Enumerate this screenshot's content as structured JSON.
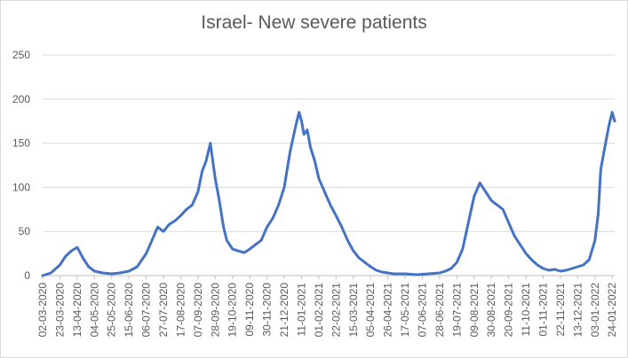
{
  "chart_data": {
    "type": "line",
    "title": "Israel- New severe patients",
    "xlabel": "",
    "ylabel": "",
    "ylim": [
      0,
      250
    ],
    "yticks": [
      0,
      50,
      100,
      150,
      200,
      250
    ],
    "grid": true,
    "color": "#4472C4",
    "x_start": "2020-03-02",
    "x_end": "2022-01-27",
    "x_tick_labels": [
      "02-03-2020",
      "23-03-2020",
      "13-04-2020",
      "04-05-2020",
      "25-05-2020",
      "15-06-2020",
      "06-07-2020",
      "27-07-2020",
      "17-08-2020",
      "07-09-2020",
      "28-09-2020",
      "19-10-2020",
      "09-11-2020",
      "30-11-2020",
      "21-12-2020",
      "11-01-2021",
      "01-02-2021",
      "22-02-2021",
      "15-03-2021",
      "05-04-2021",
      "26-04-2021",
      "17-05-2021",
      "07-06-2021",
      "28-06-2021",
      "19-07-2021",
      "09-08-2021",
      "30-08-2021",
      "20-09-2021",
      "11-10-2021",
      "01-11-2021",
      "22-11-2021",
      "13-12-2021",
      "03-01-2022",
      "24-01-2022"
    ],
    "series": [
      {
        "name": "New severe patients",
        "x": [
          "2020-03-02",
          "2020-03-12",
          "2020-03-23",
          "2020-03-30",
          "2020-04-06",
          "2020-04-13",
          "2020-04-20",
          "2020-04-27",
          "2020-05-04",
          "2020-05-14",
          "2020-05-25",
          "2020-06-04",
          "2020-06-15",
          "2020-06-25",
          "2020-07-06",
          "2020-07-13",
          "2020-07-20",
          "2020-07-27",
          "2020-08-03",
          "2020-08-10",
          "2020-08-17",
          "2020-08-24",
          "2020-08-31",
          "2020-09-07",
          "2020-09-12",
          "2020-09-17",
          "2020-09-22",
          "2020-09-28",
          "2020-10-03",
          "2020-10-08",
          "2020-10-12",
          "2020-10-19",
          "2020-10-26",
          "2020-11-02",
          "2020-11-09",
          "2020-11-16",
          "2020-11-23",
          "2020-11-30",
          "2020-12-07",
          "2020-12-14",
          "2020-12-21",
          "2020-12-28",
          "2021-01-04",
          "2021-01-08",
          "2021-01-11",
          "2021-01-14",
          "2021-01-18",
          "2021-01-22",
          "2021-01-27",
          "2021-02-01",
          "2021-02-08",
          "2021-02-15",
          "2021-02-22",
          "2021-03-01",
          "2021-03-08",
          "2021-03-15",
          "2021-03-22",
          "2021-03-29",
          "2021-04-05",
          "2021-04-12",
          "2021-04-19",
          "2021-04-26",
          "2021-05-03",
          "2021-05-17",
          "2021-05-31",
          "2021-06-14",
          "2021-06-28",
          "2021-07-05",
          "2021-07-12",
          "2021-07-19",
          "2021-07-26",
          "2021-08-02",
          "2021-08-09",
          "2021-08-16",
          "2021-08-23",
          "2021-08-30",
          "2021-09-06",
          "2021-09-13",
          "2021-09-20",
          "2021-09-27",
          "2021-10-04",
          "2021-10-11",
          "2021-10-18",
          "2021-10-25",
          "2021-11-01",
          "2021-11-08",
          "2021-11-15",
          "2021-11-22",
          "2021-11-29",
          "2021-12-06",
          "2021-12-13",
          "2021-12-20",
          "2021-12-27",
          "2022-01-03",
          "2022-01-07",
          "2022-01-10",
          "2022-01-13",
          "2022-01-17",
          "2022-01-20",
          "2022-01-24",
          "2022-01-27"
        ],
        "values": [
          0,
          3,
          12,
          22,
          28,
          32,
          20,
          10,
          5,
          3,
          2,
          3,
          5,
          10,
          25,
          40,
          55,
          50,
          58,
          62,
          68,
          75,
          80,
          95,
          118,
          130,
          150,
          110,
          85,
          55,
          40,
          30,
          28,
          26,
          30,
          35,
          40,
          55,
          65,
          80,
          100,
          140,
          170,
          185,
          175,
          160,
          165,
          145,
          130,
          110,
          95,
          80,
          68,
          55,
          40,
          28,
          20,
          15,
          10,
          6,
          4,
          3,
          2,
          2,
          1,
          2,
          3,
          5,
          8,
          15,
          30,
          60,
          90,
          105,
          95,
          85,
          80,
          75,
          60,
          45,
          35,
          25,
          18,
          12,
          8,
          6,
          7,
          5,
          6,
          8,
          10,
          12,
          18,
          40,
          70,
          120,
          135,
          155,
          170,
          185,
          175
        ]
      }
    ]
  }
}
